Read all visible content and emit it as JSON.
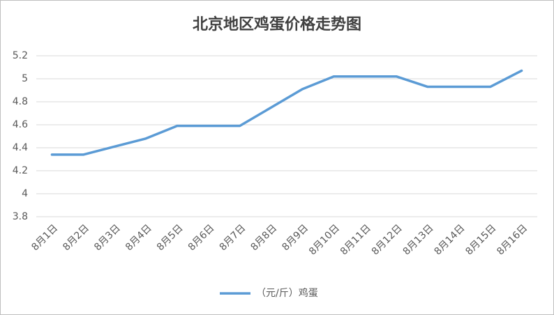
{
  "chart_data": {
    "type": "line",
    "title": "北京地区鸡蛋价格走势图",
    "categories": [
      "8月1日",
      "8月2日",
      "8月3日",
      "8月4日",
      "8月5日",
      "8月6日",
      "8月7日",
      "8月8日",
      "8月9日",
      "8月10日",
      "8月11日",
      "8月12日",
      "8月13日",
      "8月14日",
      "8月15日",
      "8月16日"
    ],
    "series": [
      {
        "name": "（元/斤）鸡蛋",
        "color": "#5b9bd5",
        "values": [
          4.34,
          4.34,
          4.41,
          4.48,
          4.59,
          4.59,
          4.59,
          4.75,
          4.91,
          5.02,
          5.02,
          5.02,
          4.93,
          4.93,
          4.93,
          5.07
        ]
      }
    ],
    "ylim": [
      3.8,
      5.2
    ],
    "yticks": [
      3.8,
      4,
      4.2,
      4.4,
      4.6,
      4.8,
      5,
      5.2
    ],
    "grid": true,
    "legend": "bottom"
  }
}
